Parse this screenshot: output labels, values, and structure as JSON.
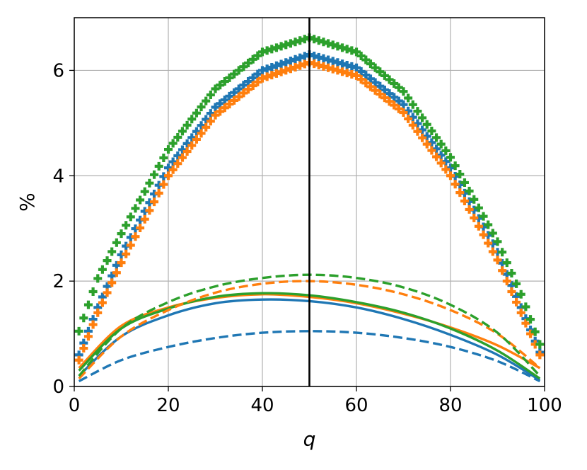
{
  "chart_data": {
    "type": "line",
    "title": "",
    "xlabel": "q",
    "ylabel": "%",
    "xlim": [
      0,
      100
    ],
    "ylim": [
      0,
      7
    ],
    "xticks": [
      0,
      20,
      40,
      60,
      80,
      100
    ],
    "yticks": [
      0,
      2,
      4,
      6
    ],
    "grid": true,
    "legend": "none",
    "vline_x": 50,
    "colors": {
      "blue": "#1f77b4",
      "orange": "#ff7f0e",
      "green": "#2ca02c",
      "vline": "#000000"
    },
    "series": [
      {
        "color": "blue",
        "style": "marker-plus",
        "x": [
          1,
          5,
          10,
          20,
          30,
          40,
          50,
          60,
          70,
          80,
          90,
          95,
          99
        ],
        "y": [
          0.6,
          1.5,
          2.5,
          4.15,
          5.3,
          6.0,
          6.3,
          6.05,
          5.35,
          4.15,
          2.55,
          1.5,
          0.65
        ]
      },
      {
        "color": "orange",
        "style": "marker-plus",
        "x": [
          1,
          5,
          10,
          20,
          30,
          40,
          50,
          60,
          70,
          80,
          90,
          95,
          99
        ],
        "y": [
          0.5,
          1.4,
          2.35,
          4.0,
          5.15,
          5.85,
          6.15,
          5.9,
          5.2,
          4.0,
          2.4,
          1.4,
          0.6
        ]
      },
      {
        "color": "green",
        "style": "marker-plus",
        "x": [
          1,
          5,
          10,
          20,
          30,
          40,
          50,
          60,
          70,
          80,
          90,
          95,
          99
        ],
        "y": [
          1.05,
          2.05,
          2.9,
          4.5,
          5.65,
          6.35,
          6.62,
          6.35,
          5.6,
          4.35,
          2.75,
          1.75,
          0.8
        ]
      },
      {
        "color": "blue",
        "style": "solid",
        "x": [
          1,
          10,
          20,
          30,
          40,
          50,
          60,
          70,
          80,
          90,
          99
        ],
        "y": [
          0.2,
          0.95,
          1.35,
          1.58,
          1.65,
          1.62,
          1.5,
          1.28,
          0.98,
          0.6,
          0.12
        ]
      },
      {
        "color": "orange",
        "style": "solid",
        "x": [
          1,
          10,
          20,
          30,
          40,
          50,
          60,
          70,
          80,
          90,
          99
        ],
        "y": [
          0.35,
          1.15,
          1.5,
          1.68,
          1.75,
          1.7,
          1.58,
          1.38,
          1.12,
          0.78,
          0.35
        ]
      },
      {
        "color": "green",
        "style": "solid",
        "x": [
          1,
          10,
          20,
          30,
          40,
          50,
          60,
          70,
          80,
          90,
          99
        ],
        "y": [
          0.3,
          1.1,
          1.48,
          1.7,
          1.77,
          1.73,
          1.6,
          1.4,
          1.1,
          0.68,
          0.15
        ]
      },
      {
        "color": "blue",
        "style": "dashed",
        "x": [
          1,
          10,
          20,
          30,
          40,
          50,
          60,
          70,
          80,
          90,
          99
        ],
        "y": [
          0.1,
          0.5,
          0.75,
          0.92,
          1.02,
          1.05,
          1.02,
          0.92,
          0.75,
          0.48,
          0.1
        ]
      },
      {
        "color": "orange",
        "style": "dashed",
        "x": [
          1,
          10,
          20,
          30,
          40,
          50,
          60,
          70,
          80,
          90,
          99
        ],
        "y": [
          0.15,
          0.95,
          1.45,
          1.78,
          1.95,
          2.0,
          1.93,
          1.75,
          1.45,
          1.0,
          0.35
        ]
      },
      {
        "color": "green",
        "style": "dashed",
        "x": [
          1,
          10,
          20,
          30,
          40,
          50,
          60,
          70,
          80,
          90,
          99
        ],
        "y": [
          0.2,
          1.1,
          1.6,
          1.9,
          2.06,
          2.12,
          2.06,
          1.88,
          1.55,
          1.02,
          0.2
        ]
      }
    ]
  }
}
